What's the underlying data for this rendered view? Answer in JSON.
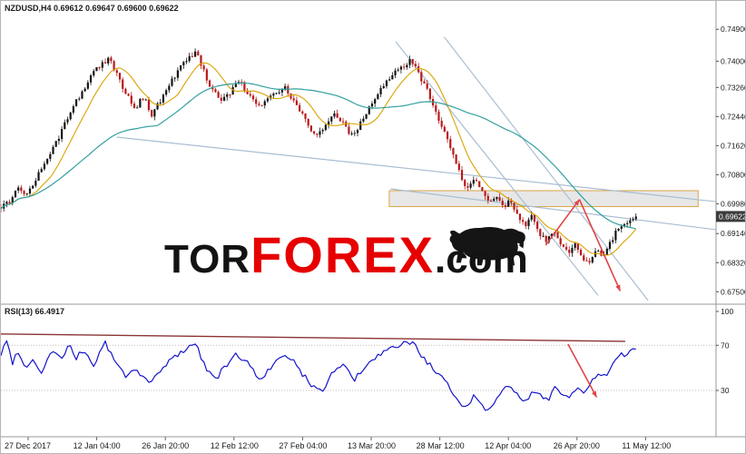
{
  "header": {
    "symbol_line": "NZDUSD,H4 0.69612 0.69647 0.69600 0.69622"
  },
  "watermark": {
    "part1": "TOR",
    "part2": "FOREX",
    "part3": ".com"
  },
  "colors": {
    "bull_candle": "#151515",
    "bear_candle": "#b81a1a",
    "ma_fast": "#d9a300",
    "ma_slow": "#33a0a0",
    "trendline": "#a9bed2",
    "zone_fill": "rgba(170,170,170,0.28)",
    "zone_border": "#d9a646",
    "arrow": "#e04545",
    "rsi_line": "#1414cc",
    "rsi_trendline": "#8b3333",
    "price_tag_bg": "#3c3c3c",
    "axis_text": "#1a1a1a",
    "watermark_red": "#e60000",
    "watermark_black": "#131313"
  },
  "price_axis": {
    "labels": [
      "0.74900",
      "0.74000",
      "0.73260",
      "0.72440",
      "0.71620",
      "0.70800",
      "0.69980",
      "0.69140",
      "0.68320",
      "0.67500"
    ],
    "values": [
      0.749,
      0.74,
      0.7326,
      0.7244,
      0.7162,
      0.708,
      0.6998,
      0.6914,
      0.6832,
      0.675
    ],
    "current_price_label": "0.69622"
  },
  "time_axis": {
    "labels": [
      "27 Dec 2017",
      "12 Jan 04:00",
      "26 Jan 20:00",
      "12 Feb 12:00",
      "27 Feb 04:00",
      "13 Mar 20:00",
      "28 Mar 12:00",
      "12 Apr 04:00",
      "26 Apr 20:00",
      "11 May 12:00"
    ]
  },
  "chart_data": [
    {
      "type": "candlestick",
      "symbol": "NZDUSD",
      "timeframe": "H4",
      "ohlc": {
        "open": 0.69612,
        "high": 0.69647,
        "low": 0.696,
        "close": 0.69622
      },
      "ylim": [
        0.672,
        0.757
      ],
      "grid": "off",
      "legend": "none",
      "price_path": [
        [
          0.0,
          0.6985
        ],
        [
          0.012,
          0.7005
        ],
        [
          0.025,
          0.704
        ],
        [
          0.038,
          0.7025
        ],
        [
          0.05,
          0.707
        ],
        [
          0.062,
          0.7115
        ],
        [
          0.075,
          0.716
        ],
        [
          0.088,
          0.7215
        ],
        [
          0.1,
          0.727
        ],
        [
          0.112,
          0.731
        ],
        [
          0.125,
          0.7355
        ],
        [
          0.138,
          0.7385
        ],
        [
          0.152,
          0.7408
        ],
        [
          0.163,
          0.736
        ],
        [
          0.175,
          0.7305
        ],
        [
          0.188,
          0.727
        ],
        [
          0.2,
          0.73
        ],
        [
          0.21,
          0.7248
        ],
        [
          0.222,
          0.7285
        ],
        [
          0.235,
          0.7335
        ],
        [
          0.25,
          0.738
        ],
        [
          0.262,
          0.7405
        ],
        [
          0.272,
          0.7428
        ],
        [
          0.282,
          0.738
        ],
        [
          0.295,
          0.732
        ],
        [
          0.308,
          0.7282
        ],
        [
          0.32,
          0.731
        ],
        [
          0.333,
          0.7348
        ],
        [
          0.345,
          0.731
        ],
        [
          0.358,
          0.727
        ],
        [
          0.372,
          0.729
        ],
        [
          0.385,
          0.731
        ],
        [
          0.398,
          0.733
        ],
        [
          0.41,
          0.728
        ],
        [
          0.425,
          0.7235
        ],
        [
          0.44,
          0.7185
        ],
        [
          0.452,
          0.7215
        ],
        [
          0.465,
          0.725
        ],
        [
          0.478,
          0.7225
        ],
        [
          0.492,
          0.7185
        ],
        [
          0.505,
          0.723
        ],
        [
          0.518,
          0.7275
        ],
        [
          0.532,
          0.732
        ],
        [
          0.545,
          0.7355
        ],
        [
          0.56,
          0.7385
        ],
        [
          0.572,
          0.7402
        ],
        [
          0.582,
          0.7375
        ],
        [
          0.595,
          0.732
        ],
        [
          0.608,
          0.726
        ],
        [
          0.62,
          0.7195
        ],
        [
          0.632,
          0.7135
        ],
        [
          0.642,
          0.7085
        ],
        [
          0.652,
          0.704
        ],
        [
          0.662,
          0.7068
        ],
        [
          0.672,
          0.703
        ],
        [
          0.682,
          0.7
        ],
        [
          0.692,
          0.7022
        ],
        [
          0.702,
          0.6988
        ],
        [
          0.712,
          0.7008
        ],
        [
          0.722,
          0.6972
        ],
        [
          0.732,
          0.6935
        ],
        [
          0.742,
          0.6962
        ],
        [
          0.752,
          0.6918
        ],
        [
          0.762,
          0.6892
        ],
        [
          0.772,
          0.6922
        ],
        [
          0.782,
          0.6878
        ],
        [
          0.792,
          0.6858
        ],
        [
          0.802,
          0.6886
        ],
        [
          0.812,
          0.6848
        ],
        [
          0.822,
          0.6836
        ],
        [
          0.832,
          0.6872
        ],
        [
          0.842,
          0.6852
        ],
        [
          0.852,
          0.6888
        ],
        [
          0.862,
          0.6928
        ],
        [
          0.875,
          0.6948
        ],
        [
          0.888,
          0.69622
        ]
      ],
      "annotations": {
        "resistance_zone": {
          "x1": 0.543,
          "x2": 0.975,
          "price_top": 0.7035,
          "price_bottom": 0.699
        },
        "trendlines": [
          {
            "x1": 0.162,
            "p1": 0.7186,
            "x2": 1.0,
            "p2": 0.7004
          },
          {
            "x1": 0.552,
            "p1": 0.7455,
            "x2": 0.835,
            "p2": 0.674
          },
          {
            "x1": 0.62,
            "p1": 0.7468,
            "x2": 0.905,
            "p2": 0.6725
          },
          {
            "x1": 0.545,
            "p1": 0.704,
            "x2": 1.0,
            "p2": 0.6925
          }
        ],
        "arrows": [
          {
            "x1": 0.762,
            "p1": 0.6882,
            "x2": 0.809,
            "p2": 0.701
          },
          {
            "x1": 0.809,
            "p1": 0.701,
            "x2": 0.866,
            "p2": 0.6752
          }
        ]
      }
    },
    {
      "type": "line",
      "name": "RSI(13)",
      "label": "RSI(13) 66.4917",
      "current": 66.4917,
      "ylim": [
        0,
        100
      ],
      "levels": [
        70,
        30
      ],
      "axis_labels": [
        "100",
        "70",
        "30"
      ],
      "axis_values": [
        100,
        70,
        30
      ],
      "points": [
        [
          0.0,
          62
        ],
        [
          0.008,
          74
        ],
        [
          0.016,
          55
        ],
        [
          0.025,
          66
        ],
        [
          0.035,
          48
        ],
        [
          0.045,
          60
        ],
        [
          0.055,
          44
        ],
        [
          0.065,
          58
        ],
        [
          0.075,
          66
        ],
        [
          0.085,
          57
        ],
        [
          0.095,
          70
        ],
        [
          0.105,
          58
        ],
        [
          0.115,
          66
        ],
        [
          0.13,
          52
        ],
        [
          0.145,
          73
        ],
        [
          0.16,
          55
        ],
        [
          0.175,
          42
        ],
        [
          0.19,
          50
        ],
        [
          0.205,
          36
        ],
        [
          0.22,
          44
        ],
        [
          0.235,
          56
        ],
        [
          0.25,
          63
        ],
        [
          0.265,
          70
        ],
        [
          0.272,
          72
        ],
        [
          0.285,
          52
        ],
        [
          0.3,
          40
        ],
        [
          0.315,
          52
        ],
        [
          0.33,
          62
        ],
        [
          0.345,
          55
        ],
        [
          0.36,
          40
        ],
        [
          0.375,
          48
        ],
        [
          0.39,
          58
        ],
        [
          0.405,
          60
        ],
        [
          0.42,
          45
        ],
        [
          0.435,
          35
        ],
        [
          0.45,
          30
        ],
        [
          0.465,
          48
        ],
        [
          0.48,
          52
        ],
        [
          0.495,
          40
        ],
        [
          0.51,
          50
        ],
        [
          0.525,
          60
        ],
        [
          0.545,
          66
        ],
        [
          0.56,
          71
        ],
        [
          0.575,
          73
        ],
        [
          0.59,
          60
        ],
        [
          0.605,
          48
        ],
        [
          0.62,
          38
        ],
        [
          0.635,
          26
        ],
        [
          0.65,
          14
        ],
        [
          0.662,
          26
        ],
        [
          0.672,
          18
        ],
        [
          0.682,
          11
        ],
        [
          0.695,
          26
        ],
        [
          0.705,
          36
        ],
        [
          0.715,
          30
        ],
        [
          0.725,
          24
        ],
        [
          0.735,
          19
        ],
        [
          0.745,
          30
        ],
        [
          0.755,
          26
        ],
        [
          0.765,
          22
        ],
        [
          0.775,
          33
        ],
        [
          0.785,
          27
        ],
        [
          0.795,
          24
        ],
        [
          0.805,
          31
        ],
        [
          0.815,
          27
        ],
        [
          0.825,
          36
        ],
        [
          0.835,
          46
        ],
        [
          0.845,
          41
        ],
        [
          0.855,
          52
        ],
        [
          0.865,
          60
        ],
        [
          0.876,
          64
        ],
        [
          0.888,
          66.5
        ]
      ],
      "trendline": {
        "x1": 0.0,
        "v1": 80,
        "x2": 0.873,
        "v2": 73.5
      },
      "arrow": {
        "x1": 0.793,
        "v1": 71,
        "x2": 0.833,
        "v2": 24
      }
    }
  ]
}
